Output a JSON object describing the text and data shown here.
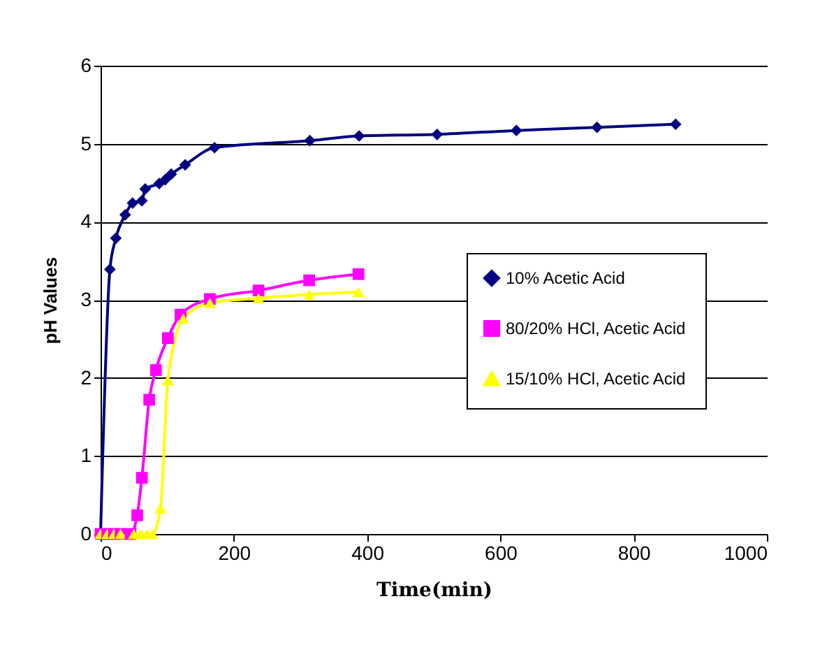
{
  "chart_data": {
    "type": "line",
    "xlabel": "Time(min)",
    "ylabel": "pH Values",
    "xlim": [
      0,
      1000
    ],
    "xticks": [
      0,
      200,
      400,
      600,
      800,
      1000
    ],
    "ylim": [
      0,
      6
    ],
    "yticks": [
      0,
      1,
      2,
      3,
      4,
      5,
      6
    ],
    "grid": "y",
    "legend": "right",
    "series": [
      {
        "name": "10% Acetic Acid",
        "color": "#000080",
        "marker": "diamond",
        "x": [
          0,
          14,
          23,
          37,
          48,
          62,
          67,
          88,
          97,
          106,
          127,
          171,
          314,
          388,
          505,
          624,
          745,
          863
        ],
        "values": [
          0,
          3.39,
          3.79,
          4.09,
          4.24,
          4.27,
          4.42,
          4.49,
          4.54,
          4.61,
          4.73,
          4.95,
          5.04,
          5.1,
          5.12,
          5.17,
          5.21,
          5.25
        ]
      },
      {
        "name": "80/20% HCl, Acetic Acid",
        "color": "#ff00ff",
        "marker": "square",
        "x": [
          0,
          10,
          20,
          30,
          45,
          55,
          62,
          73,
          83,
          101,
          120,
          164,
          237,
          313,
          387
        ],
        "values": [
          0,
          0,
          0,
          0,
          0,
          0.24,
          0.72,
          1.72,
          2.1,
          2.51,
          2.81,
          3.01,
          3.12,
          3.25,
          3.33
        ]
      },
      {
        "name": "15/10% HCl, Acetic Acid",
        "color": "#ffff00",
        "marker": "triangle",
        "x": [
          0,
          10,
          20,
          30,
          40,
          50,
          60,
          70,
          78,
          90,
          101,
          124,
          164,
          237,
          313,
          387
        ],
        "values": [
          0,
          0,
          0,
          0,
          0,
          0,
          0,
          0,
          0,
          0.33,
          1.97,
          2.76,
          2.96,
          3.02,
          3.07,
          3.1
        ]
      }
    ]
  }
}
